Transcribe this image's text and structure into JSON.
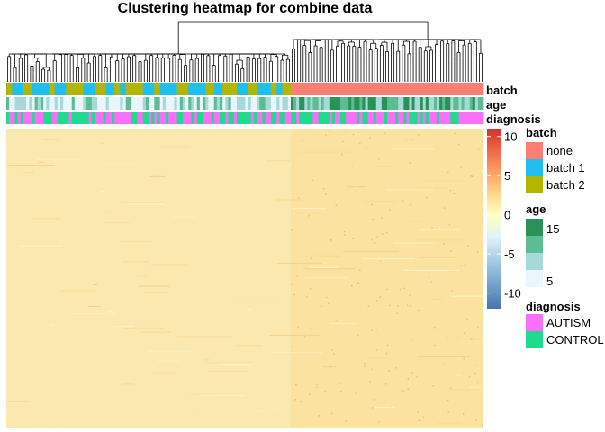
{
  "chart_data": {
    "type": "heatmap",
    "title": "Clustering heatmap for combine data",
    "annotation_rows": [
      "batch",
      "age",
      "diagnosis"
    ],
    "color_scale": {
      "ticks": [
        10,
        5,
        0,
        -5,
        -10
      ],
      "tick_labels": [
        "10",
        "5",
        "0",
        "-5",
        "-10"
      ],
      "range": [
        -12,
        11
      ],
      "colors": [
        "#4575b4",
        "#91bfdb",
        "#e0f3f8",
        "#ffffbf",
        "#fee090",
        "#fc8d59",
        "#d73027"
      ]
    },
    "legends": {
      "batch": {
        "title": "batch",
        "items": [
          {
            "label": "none",
            "color": "#fa7f72"
          },
          {
            "label": "batch 1",
            "color": "#1fbfef"
          },
          {
            "label": "batch 2",
            "color": "#b3b600"
          }
        ]
      },
      "age": {
        "title": "age",
        "tick_labels": [
          "15",
          "5"
        ],
        "colors": [
          "#2a9158",
          "#5cbd92",
          "#a6dad9",
          "#e9f6fb"
        ]
      },
      "diagnosis": {
        "title": "diagnosis",
        "items": [
          {
            "label": "AUTISM",
            "color": "#fa6ff9"
          },
          {
            "label": "CONTROL",
            "color": "#1fdb8d"
          }
        ]
      }
    },
    "grid": false
  }
}
